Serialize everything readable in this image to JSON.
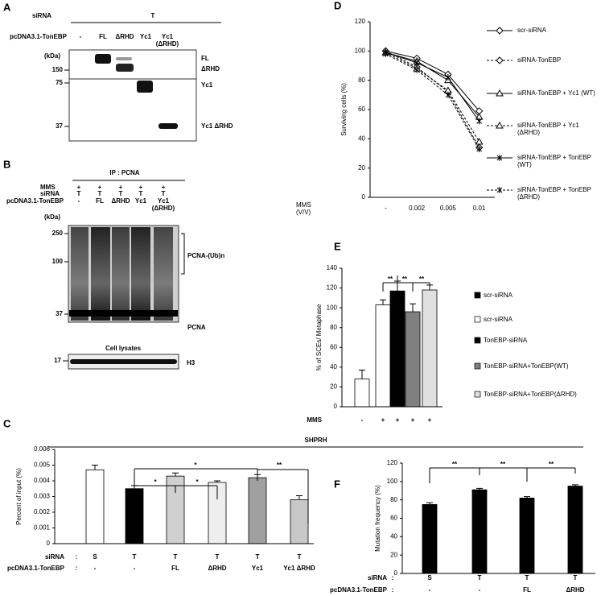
{
  "blots": {
    "A": {
      "panel": "A",
      "sirna_label": "siRNA",
      "sirna": "T",
      "plasmid_label": "pcDNA3.1-TonEBP",
      "lanes": [
        "-",
        "FL",
        "ΔRHD",
        "Yc1",
        "Yc1 (ΔRHD)"
      ],
      "kda_label": "(kDa)",
      "markers": [
        "150",
        "75",
        "37"
      ],
      "bands": [
        "FL",
        "ΔRHD",
        "Yc1",
        "Yc1 ΔRHD"
      ]
    },
    "B": {
      "panel": "B",
      "ip": "IP : PCNA",
      "rows": [
        {
          "label": "MMS",
          "lanes": [
            "+",
            "+",
            "+",
            "+",
            "+"
          ]
        },
        {
          "label": "siRNA",
          "lanes": [
            "T",
            "T",
            "T",
            "T",
            "T"
          ]
        },
        {
          "label": "pcDNA3.1-TonEBP",
          "lanes": [
            "-",
            "FL",
            "ΔRHD",
            "Yc1",
            "Yc1 (ΔRHD)"
          ]
        }
      ],
      "kda_label": "(kDa)",
      "markers": [
        "250",
        "100",
        "37"
      ],
      "bands": [
        "PCNA-(Ub)n",
        "PCNA"
      ],
      "lysate_title": "Cell lysates",
      "lysate_marker": "17",
      "lysate_band": "H3"
    }
  },
  "chart_data": [
    {
      "type": "bar",
      "panel": "C",
      "title": "SHPRH",
      "ylabel": "Percent of input (%)",
      "ylim": [
        0,
        0.006
      ],
      "yticks": [
        0,
        0.001,
        0.002,
        0.003,
        0.004,
        0.005,
        0.006
      ],
      "values": [
        0.0047,
        0.0035,
        0.0043,
        0.0039,
        0.0042,
        0.0028
      ],
      "errors": [
        0.0003,
        0.0002,
        0.0002,
        0.0001,
        0.0002,
        0.00025
      ],
      "colors": [
        "#ffffff",
        "#000000",
        "#d0d0d0",
        "#eeeeee",
        "#a0a0a0",
        "#c8c8c8"
      ],
      "row_separator": ":",
      "rows": [
        {
          "label": "siRNA",
          "values": [
            "S",
            "T",
            "T",
            "T",
            "T",
            "T"
          ]
        },
        {
          "label": "pcDNA3.1-TonEBP",
          "values": [
            "-",
            "-",
            "FL",
            "ΔRHD",
            "Yc1",
            "Yc1 ΔRHD"
          ]
        }
      ],
      "annotations": [
        "*",
        "*",
        "*",
        "**"
      ]
    },
    {
      "type": "line",
      "panel": "D",
      "ylabel": "Surviving cells (%)",
      "xlabel": "MMS (V/V)",
      "ylim": [
        0,
        120
      ],
      "yticks": [
        0,
        20,
        40,
        60,
        80,
        100,
        120
      ],
      "categories": [
        "-",
        "0.002",
        "0.005",
        "0.01"
      ],
      "series": [
        {
          "name": "scr-siRNA",
          "color": "#000000",
          "dash": false,
          "marker": "diamond",
          "values": [
            100,
            95,
            84,
            59
          ]
        },
        {
          "name": "siRNA-TonEBP",
          "color": "#000000",
          "dash": true,
          "marker": "diamond",
          "values": [
            100,
            89,
            72,
            34
          ]
        },
        {
          "name": "siRNA-TonEBP + Yc1 (WT)",
          "color": "#000000",
          "dash": false,
          "marker": "triangle",
          "values": [
            99,
            93,
            80,
            55
          ]
        },
        {
          "name": "siRNA-TonEBP + Yc1 (ΔRHD)",
          "color": "#000000",
          "dash": true,
          "marker": "triangle",
          "values": [
            99,
            88,
            73,
            38
          ]
        },
        {
          "name": "siRNA-TonEBP + TonEBP (WT)",
          "color": "#000000",
          "dash": false,
          "marker": "star",
          "values": [
            99,
            92,
            82,
            52
          ]
        },
        {
          "name": "siRNA-TonEBP + TonEBP (ΔRHD)",
          "color": "#000000",
          "dash": true,
          "marker": "star",
          "values": [
            98,
            87,
            70,
            33
          ]
        }
      ]
    },
    {
      "type": "bar",
      "panel": "E",
      "ylabel": "% of SCEs/ Metaphase",
      "ylim": [
        0,
        140
      ],
      "yticks": [
        0,
        20,
        40,
        60,
        80,
        100,
        120,
        140
      ],
      "values": [
        28,
        103,
        117,
        96,
        118
      ],
      "errors": [
        9,
        5,
        10,
        8,
        5
      ],
      "colors": [
        "#ffffff",
        "#ffffff",
        "#000000",
        "#808080",
        "#e0e0e0"
      ],
      "rows": [
        {
          "label": "MMS",
          "values": [
            "-",
            "+",
            "+",
            "+",
            "+"
          ]
        }
      ],
      "legend": [
        {
          "name": "scr-siRNA",
          "color": "#000000"
        },
        {
          "name": "scr-siRNA",
          "color": "#ffffff"
        },
        {
          "name": "TonEBP-siRNA",
          "color": "#000000"
        },
        {
          "name": "TonEBP-siRNA+TonEBP(WT)",
          "color": "#808080"
        },
        {
          "name": "TonEBP-siRNA+TonEBP(ΔRHD)",
          "color": "#e0e0e0"
        }
      ],
      "annotations": [
        "**",
        "**",
        "**"
      ]
    },
    {
      "type": "bar",
      "panel": "F",
      "ylabel": "Mutation frequency (%)",
      "ylim": [
        0,
        120
      ],
      "yticks": [
        0,
        20,
        40,
        60,
        80,
        100,
        120
      ],
      "values": [
        75,
        91,
        82,
        95
      ],
      "errors": [
        2,
        1.5,
        1.5,
        1.5
      ],
      "colors": [
        "#000000",
        "#000000",
        "#000000",
        "#000000"
      ],
      "row_separator": ":",
      "rows": [
        {
          "label": "siRNA",
          "values": [
            "S",
            "T",
            "T",
            "T"
          ]
        },
        {
          "label": "pcDNA3.1-TonEBP",
          "values": [
            "-",
            "-",
            "FL",
            "ΔRHD"
          ]
        }
      ],
      "annotations": [
        "**",
        "**",
        "**"
      ]
    }
  ]
}
